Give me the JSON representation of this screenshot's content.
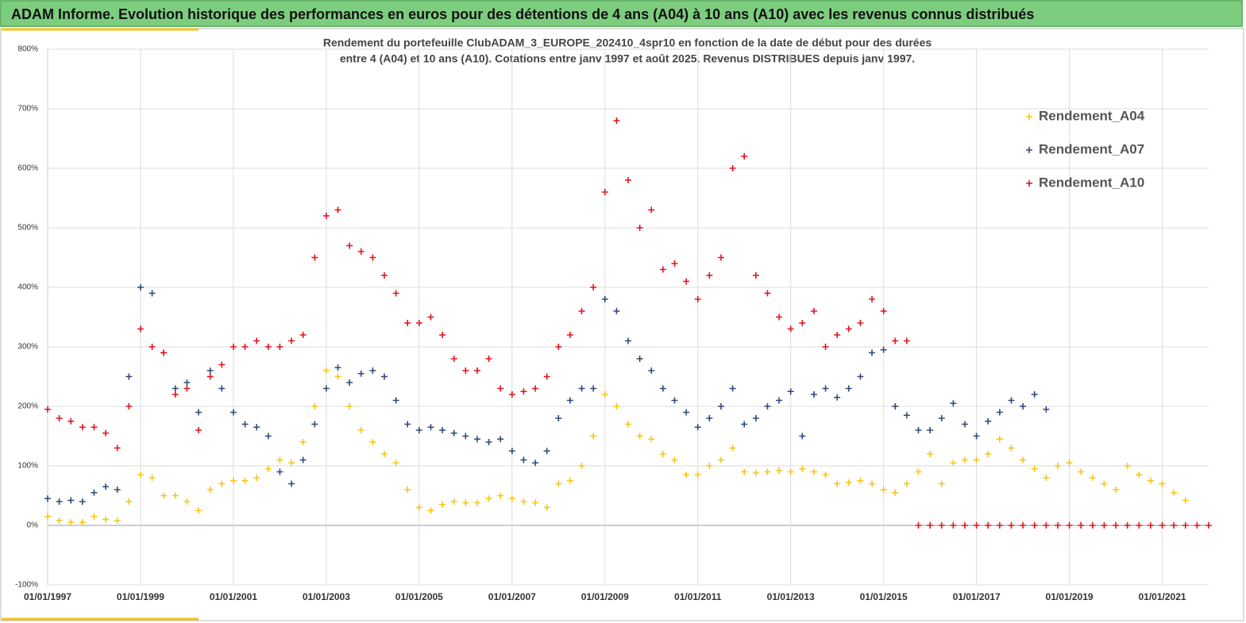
{
  "header": {
    "title": "ADAM Informe. Evolution historique des performances en euros pour des détentions de 4 ans (A04) à 10 ans (A10) avec les revenus connus distribués"
  },
  "chart_data": {
    "type": "scatter",
    "title": "Rendement du portefeuille ClubADAM_3_EUROPE_202410_4spr10  en fonction de la date de début pour des durées",
    "subtitle": "entre 4 (A04) et 10 ans (A10). Cotations  entre janv 1997 et août 2025. Revenus DISTRIBUES depuis janv 1997.",
    "x": [
      "01/01/1997",
      "01/04/1997",
      "01/07/1997",
      "01/10/1997",
      "01/01/1998",
      "01/04/1998",
      "01/07/1998",
      "01/10/1998",
      "01/01/1999",
      "01/04/1999",
      "01/07/1999",
      "01/10/1999",
      "01/01/2000",
      "01/04/2000",
      "01/07/2000",
      "01/10/2000",
      "01/01/2001",
      "01/04/2001",
      "01/07/2001",
      "01/10/2001",
      "01/01/2002",
      "01/04/2002",
      "01/07/2002",
      "01/10/2002",
      "01/01/2003",
      "01/04/2003",
      "01/07/2003",
      "01/10/2003",
      "01/01/2004",
      "01/04/2004",
      "01/07/2004",
      "01/10/2004",
      "01/01/2005",
      "01/04/2005",
      "01/07/2005",
      "01/10/2005",
      "01/01/2006",
      "01/04/2006",
      "01/07/2006",
      "01/10/2006",
      "01/01/2007",
      "01/04/2007",
      "01/07/2007",
      "01/10/2007",
      "01/01/2008",
      "01/04/2008",
      "01/07/2008",
      "01/10/2008",
      "01/01/2009",
      "01/04/2009",
      "01/07/2009",
      "01/10/2009",
      "01/01/2010",
      "01/04/2010",
      "01/07/2010",
      "01/10/2010",
      "01/01/2011",
      "01/04/2011",
      "01/07/2011",
      "01/10/2011",
      "01/01/2012",
      "01/04/2012",
      "01/07/2012",
      "01/10/2012",
      "01/01/2013",
      "01/04/2013",
      "01/07/2013",
      "01/10/2013",
      "01/01/2014",
      "01/04/2014",
      "01/07/2014",
      "01/10/2014",
      "01/01/2015",
      "01/04/2015",
      "01/07/2015",
      "01/10/2015",
      "01/01/2016",
      "01/04/2016",
      "01/07/2016",
      "01/10/2016",
      "01/01/2017",
      "01/04/2017",
      "01/07/2017",
      "01/10/2017",
      "01/01/2018",
      "01/04/2018",
      "01/07/2018",
      "01/10/2018",
      "01/01/2019",
      "01/04/2019",
      "01/07/2019",
      "01/10/2019",
      "01/01/2020",
      "01/04/2020",
      "01/07/2020",
      "01/10/2020",
      "01/01/2021",
      "01/04/2021",
      "01/07/2021",
      "01/10/2021",
      "01/01/2022"
    ],
    "series": [
      {
        "name": "Rendement_A04",
        "color": "#f5c518",
        "values": [
          15,
          8,
          5,
          5,
          15,
          10,
          8,
          40,
          85,
          80,
          50,
          50,
          40,
          25,
          60,
          70,
          75,
          75,
          80,
          95,
          110,
          105,
          140,
          200,
          260,
          250,
          200,
          160,
          140,
          120,
          105,
          60,
          30,
          25,
          35,
          40,
          38,
          38,
          45,
          50,
          45,
          40,
          38,
          30,
          70,
          75,
          100,
          150,
          220,
          200,
          170,
          150,
          145,
          120,
          110,
          85,
          85,
          100,
          110,
          130,
          90,
          88,
          90,
          92,
          90,
          95,
          90,
          85,
          70,
          72,
          75,
          70,
          60,
          55,
          70,
          90,
          120,
          70,
          105,
          110,
          110,
          120,
          145,
          130,
          110,
          95,
          80,
          100,
          105,
          90,
          80,
          70,
          60,
          100,
          85,
          75,
          70,
          55,
          42,
          null,
          null
        ]
      },
      {
        "name": "Rendement_A07",
        "color": "#2e4a7a",
        "values": [
          45,
          40,
          42,
          40,
          55,
          65,
          60,
          250,
          400,
          390,
          290,
          230,
          240,
          190,
          260,
          230,
          190,
          170,
          165,
          150,
          90,
          70,
          110,
          170,
          230,
          265,
          240,
          255,
          260,
          250,
          210,
          170,
          160,
          165,
          160,
          155,
          150,
          145,
          140,
          145,
          125,
          110,
          105,
          125,
          180,
          210,
          230,
          230,
          380,
          360,
          310,
          280,
          260,
          230,
          210,
          190,
          165,
          180,
          200,
          230,
          170,
          180,
          200,
          210,
          225,
          150,
          220,
          230,
          215,
          230,
          250,
          290,
          295,
          200,
          185,
          160,
          160,
          180,
          205,
          170,
          150,
          175,
          190,
          210,
          200,
          220,
          195,
          null,
          null,
          null,
          null,
          null,
          null,
          null,
          null,
          null,
          null,
          null,
          null,
          null,
          null
        ]
      },
      {
        "name": "Rendement_A10",
        "color": "#e0141e",
        "values": [
          195,
          180,
          175,
          165,
          165,
          155,
          130,
          200,
          330,
          300,
          290,
          220,
          230,
          160,
          250,
          270,
          300,
          300,
          310,
          300,
          300,
          310,
          320,
          450,
          520,
          530,
          470,
          460,
          450,
          420,
          390,
          340,
          340,
          350,
          320,
          280,
          260,
          260,
          280,
          230,
          220,
          225,
          230,
          250,
          300,
          320,
          360,
          400,
          560,
          680,
          580,
          500,
          530,
          430,
          440,
          410,
          380,
          420,
          450,
          600,
          620,
          420,
          390,
          350,
          330,
          340,
          360,
          300,
          320,
          330,
          340,
          380,
          360,
          310,
          310,
          0,
          0,
          0,
          0,
          0,
          0,
          0,
          0,
          0,
          0,
          0,
          0,
          0,
          0,
          0,
          0,
          0,
          0,
          0,
          0,
          0,
          0,
          0,
          0,
          0,
          0
        ]
      }
    ],
    "xlim": [
      "01/01/1997",
      "01/01/2022"
    ],
    "xticks": [
      "01/01/1997",
      "01/01/1999",
      "01/01/2001",
      "01/01/2003",
      "01/01/2005",
      "01/01/2007",
      "01/01/2009",
      "01/01/2011",
      "01/01/2013",
      "01/01/2015",
      "01/01/2017",
      "01/01/2019",
      "01/01/2021"
    ],
    "ylim": [
      -100,
      800
    ],
    "yticks": [
      {
        "value": -100,
        "label": "-100%"
      },
      {
        "value": 0,
        "label": "0%"
      },
      {
        "value": 100,
        "label": "100%"
      },
      {
        "value": 200,
        "label": "200%"
      },
      {
        "value": 300,
        "label": "300%"
      },
      {
        "value": 400,
        "label": "400%"
      },
      {
        "value": 500,
        "label": "500%"
      },
      {
        "value": 600,
        "label": "600%"
      },
      {
        "value": 700,
        "label": "700%"
      },
      {
        "value": 800,
        "label": "800%"
      }
    ],
    "grid": true,
    "legend": "upper right"
  }
}
